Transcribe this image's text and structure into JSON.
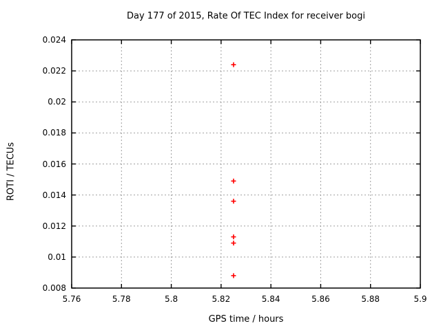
{
  "chart_data": {
    "type": "scatter",
    "title": "Day 177 of 2015, Rate Of TEC Index for receiver bogi",
    "xlabel": "GPS time / hours",
    "ylabel": "ROTI / TECUs",
    "xlim": [
      5.76,
      5.9
    ],
    "ylim": [
      0.008,
      0.024
    ],
    "x_ticks": [
      5.76,
      5.78,
      5.8,
      5.82,
      5.84,
      5.86,
      5.88,
      5.9
    ],
    "x_tick_labels": [
      "5.76",
      "5.78",
      "5.8",
      "5.82",
      "5.84",
      "5.86",
      "5.88",
      "5.9"
    ],
    "y_ticks": [
      0.008,
      0.01,
      0.012,
      0.014,
      0.016,
      0.018,
      0.02,
      0.022,
      0.024
    ],
    "y_tick_labels": [
      "0.008",
      "0.01",
      "0.012",
      "0.014",
      "0.016",
      "0.018",
      "0.02",
      "0.022",
      "0.024"
    ],
    "grid": true,
    "legend": "none",
    "series": [
      {
        "name": "ROTI",
        "marker": "plus",
        "points": [
          {
            "x": 5.825,
            "y": 0.0224
          },
          {
            "x": 5.825,
            "y": 0.0149
          },
          {
            "x": 5.825,
            "y": 0.0136
          },
          {
            "x": 5.825,
            "y": 0.0113
          },
          {
            "x": 5.825,
            "y": 0.0109
          },
          {
            "x": 5.825,
            "y": 0.0088
          }
        ]
      }
    ],
    "colors": {
      "marker": "#ff0000",
      "grid": "#9e9e9e",
      "axis": "#000000",
      "text": "#000000",
      "background": "#ffffff"
    }
  }
}
